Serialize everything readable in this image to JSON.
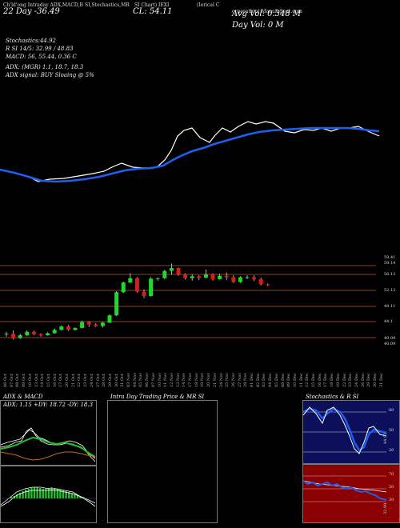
{
  "header": {
    "top_labels": [
      "Ch'ld'ong Intraday ADX,MACD,B",
      "SI,Stochastics,MR",
      "SI Chart) IEXI",
      "(Ierical C",
      "orporation) ManufaSeat.com"
    ],
    "range": "22 Day -36.49",
    "cl": "CL: 54.11",
    "avg_vol": "Avg Vol: 0.348  M",
    "day_vol": "Day Vol: 0   M"
  },
  "indicators": {
    "stochastics": "Stochastics:44.92",
    "rsi": "R                SI 14/5: 32.99 / 48.83",
    "macd": "MACD: 56,  55.44,  0.36   C",
    "adx": "ADX:                        (MGR) 1.1,  18.7,  18.3",
    "adx_signal": "ADX  signal:                        BUY Sloaing @ 5%"
  },
  "price_levels": [
    "59.41",
    "59.14",
    "56.13",
    "52.12",
    "48.11",
    "44.1",
    "40.09",
    "40.09"
  ],
  "dates": [
    "06 Oct",
    "07 Oct",
    "08 Oct",
    "09 Oct",
    "10 Oct",
    "13 Oct",
    "14 Oct",
    "15 Oct",
    "16 Oct",
    "17 Oct",
    "20 Oct",
    "21 Oct",
    "22 Oct",
    "23 Oct",
    "24 Oct",
    "27 Oct",
    "28 Oct",
    "29 Oct",
    "30 Oct",
    "31 Oct",
    "03 Nov",
    "04 Nov",
    "05 Nov",
    "06 Nov",
    "07 Nov",
    "10 Nov",
    "11 Nov",
    "12 Nov",
    "13 Nov",
    "14 Nov",
    "17 Nov",
    "18 Nov",
    "19 Nov",
    "20 Nov",
    "21 Nov",
    "24 Nov",
    "25 Nov",
    "26 Nov",
    "27 Nov",
    "28 Nov",
    "01 Dec",
    "02 Dec",
    "03 Dec",
    "04 Dec",
    "05 Dec",
    "08 Dec",
    "09 Dec",
    "10 Dec",
    "11 Dec",
    "12 Dec",
    "15 Dec",
    "16 Dec",
    "17 Dec",
    "18 Dec",
    "19 Dec",
    "22 Dec",
    "23 Dec",
    "24 Dec",
    "26 Dec",
    "29 Dec",
    "30 Dec",
    "31 Dec"
  ],
  "panels": {
    "adx_title": "ADX  & MACD",
    "adx_values": "ADX: 1.15  +DY: 18.72  -DY: 18.3",
    "intraday_title": "Intra  Day Trading Price  & MR                  SI",
    "stoch_title": "Stochastics & R                    SI",
    "stoch_axis": [
      "80",
      "50",
      "20"
    ],
    "stoch_readout": "44.92",
    "rsi_axis": [
      "70",
      "50",
      "30"
    ],
    "rsi_readout": "32.99"
  },
  "chart_data": {
    "type": "candlestick",
    "candles": [
      {
        "o": 44.8,
        "h": 45.3,
        "l": 44.3,
        "c": 44.9
      },
      {
        "o": 44.9,
        "h": 45.6,
        "l": 43.7,
        "c": 44.0
      },
      {
        "o": 44.0,
        "h": 44.9,
        "l": 43.8,
        "c": 44.6
      },
      {
        "o": 44.6,
        "h": 45.6,
        "l": 44.4,
        "c": 45.3
      },
      {
        "o": 45.3,
        "h": 45.5,
        "l": 44.6,
        "c": 44.8
      },
      {
        "o": 44.8,
        "h": 45.0,
        "l": 44.3,
        "c": 44.6
      },
      {
        "o": 44.6,
        "h": 45.2,
        "l": 44.5,
        "c": 45.0
      },
      {
        "o": 45.0,
        "h": 46.0,
        "l": 44.9,
        "c": 45.7
      },
      {
        "o": 45.7,
        "h": 46.6,
        "l": 45.6,
        "c": 46.4
      },
      {
        "o": 46.4,
        "h": 46.7,
        "l": 45.5,
        "c": 45.7
      },
      {
        "o": 45.7,
        "h": 46.2,
        "l": 45.6,
        "c": 46.1
      },
      {
        "o": 46.1,
        "h": 47.6,
        "l": 46.0,
        "c": 47.3
      },
      {
        "o": 47.3,
        "h": 47.5,
        "l": 46.3,
        "c": 46.8
      },
      {
        "o": 46.8,
        "h": 47.1,
        "l": 46.3,
        "c": 46.5
      },
      {
        "o": 46.5,
        "h": 47.3,
        "l": 46.2,
        "c": 47.2
      },
      {
        "o": 47.2,
        "h": 48.9,
        "l": 47.1,
        "c": 48.7
      },
      {
        "o": 48.7,
        "h": 53.7,
        "l": 48.6,
        "c": 53.5
      },
      {
        "o": 53.5,
        "h": 55.7,
        "l": 53.3,
        "c": 55.5
      },
      {
        "o": 55.5,
        "h": 57.4,
        "l": 55.4,
        "c": 56.4
      },
      {
        "o": 56.4,
        "h": 56.6,
        "l": 53.4,
        "c": 53.6
      },
      {
        "o": 53.6,
        "h": 54.1,
        "l": 52.3,
        "c": 52.7
      },
      {
        "o": 52.7,
        "h": 56.6,
        "l": 52.6,
        "c": 56.3
      },
      {
        "o": 56.3,
        "h": 56.5,
        "l": 55.9,
        "c": 56.4
      },
      {
        "o": 56.4,
        "h": 58.1,
        "l": 56.2,
        "c": 57.9
      },
      {
        "o": 57.9,
        "h": 59.4,
        "l": 57.1,
        "c": 58.5
      },
      {
        "o": 58.5,
        "h": 58.6,
        "l": 56.9,
        "c": 57.2
      },
      {
        "o": 57.2,
        "h": 57.4,
        "l": 56.1,
        "c": 56.4
      },
      {
        "o": 56.4,
        "h": 57.2,
        "l": 55.9,
        "c": 56.8
      },
      {
        "o": 56.8,
        "h": 57.0,
        "l": 56.0,
        "c": 56.5
      },
      {
        "o": 56.5,
        "h": 58.2,
        "l": 56.4,
        "c": 57.2
      },
      {
        "o": 57.2,
        "h": 57.4,
        "l": 55.9,
        "c": 56.2
      },
      {
        "o": 56.2,
        "h": 57.3,
        "l": 56.1,
        "c": 56.9
      },
      {
        "o": 56.9,
        "h": 57.6,
        "l": 56.0,
        "c": 56.6
      },
      {
        "o": 56.6,
        "h": 57.0,
        "l": 55.4,
        "c": 55.6
      },
      {
        "o": 55.6,
        "h": 56.8,
        "l": 55.4,
        "c": 56.6
      },
      {
        "o": 56.6,
        "h": 57.0,
        "l": 56.2,
        "c": 56.6
      },
      {
        "o": 56.6,
        "h": 57.0,
        "l": 55.8,
        "c": 56.2
      },
      {
        "o": 56.2,
        "h": 56.5,
        "l": 54.9,
        "c": 55.1
      },
      {
        "o": 55.1,
        "h": 55.3,
        "l": 54.8,
        "c": 55.0
      }
    ]
  }
}
